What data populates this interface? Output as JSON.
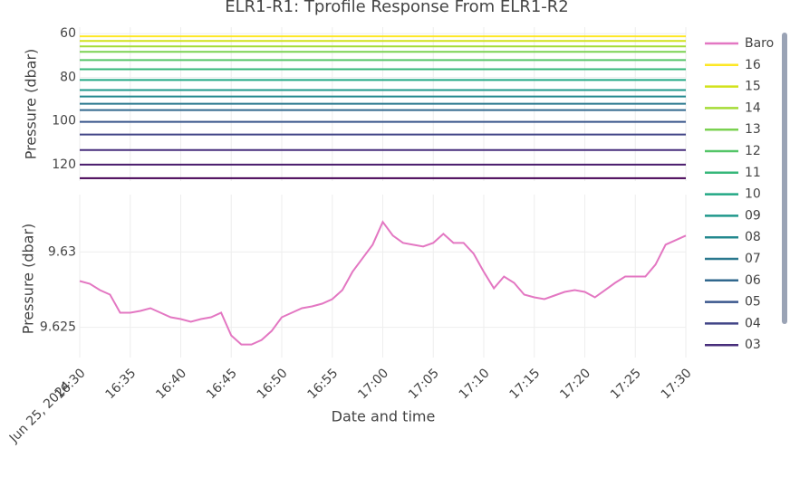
{
  "chart_data": [
    {
      "type": "line",
      "title": "ELR1-R1: Tprofile Response From ELR1-R2",
      "ylabel": "Pressure (dbar)",
      "x": [
        "2024-06-25T16:30",
        "2024-06-25T17:30"
      ],
      "xlim": [
        "2024-06-25T16:30",
        "2024-06-25T17:30"
      ],
      "ylim": [
        127.5,
        57
      ],
      "yticks": [
        60,
        80,
        100,
        120
      ],
      "grid": true,
      "series": [
        {
          "name": "16",
          "color": "#fde725",
          "values": [
            61.2,
            61.2
          ]
        },
        {
          "name": "15",
          "color": "#d2e21b",
          "values": [
            63.3,
            63.3
          ]
        },
        {
          "name": "14",
          "color": "#a5db36",
          "values": [
            65.8,
            65.8
          ]
        },
        {
          "name": "13",
          "color": "#7ad151",
          "values": [
            68.3,
            68.3
          ]
        },
        {
          "name": "12",
          "color": "#54c568",
          "values": [
            72.1,
            72.1
          ]
        },
        {
          "name": "11",
          "color": "#35b779",
          "values": [
            76.3,
            76.3
          ]
        },
        {
          "name": "10",
          "color": "#22a884",
          "values": [
            81.2,
            81.2
          ]
        },
        {
          "name": "09",
          "color": "#1f988b",
          "values": [
            85.8,
            85.8
          ]
        },
        {
          "name": "08",
          "color": "#23888e",
          "values": [
            88.8,
            88.8
          ]
        },
        {
          "name": "07",
          "color": "#2a788e",
          "values": [
            92.1,
            92.1
          ]
        },
        {
          "name": "06",
          "color": "#31688e",
          "values": [
            95,
            95
          ]
        },
        {
          "name": "05",
          "color": "#39568c",
          "values": [
            100.4,
            100.4
          ]
        },
        {
          "name": "04",
          "color": "#414487",
          "values": [
            106.2,
            106.2
          ]
        },
        {
          "name": "03",
          "color": "#472d7b",
          "values": [
            113.3,
            113.3
          ]
        },
        {
          "name": null,
          "color": "#481a6c",
          "values": [
            120,
            120
          ]
        },
        {
          "name": null,
          "color": "#440154",
          "values": [
            126.2,
            126.2
          ]
        }
      ]
    },
    {
      "type": "line",
      "ylabel": "Pressure (dbar)",
      "xlabel": "Date and time",
      "x_date": "Jun 25, 2024",
      "x": [
        "2024-06-25T16:30",
        "2024-06-25T16:31",
        "2024-06-25T16:32",
        "2024-06-25T16:33",
        "2024-06-25T16:34",
        "2024-06-25T16:35",
        "2024-06-25T16:36",
        "2024-06-25T16:37",
        "2024-06-25T16:38",
        "2024-06-25T16:39",
        "2024-06-25T16:40",
        "2024-06-25T16:41",
        "2024-06-25T16:42",
        "2024-06-25T16:43",
        "2024-06-25T16:44",
        "2024-06-25T16:45",
        "2024-06-25T16:46",
        "2024-06-25T16:47",
        "2024-06-25T16:48",
        "2024-06-25T16:49",
        "2024-06-25T16:50",
        "2024-06-25T16:51",
        "2024-06-25T16:52",
        "2024-06-25T16:53",
        "2024-06-25T16:54",
        "2024-06-25T16:55",
        "2024-06-25T16:56",
        "2024-06-25T16:57",
        "2024-06-25T16:58",
        "2024-06-25T16:59",
        "2024-06-25T17:00",
        "2024-06-25T17:01",
        "2024-06-25T17:02",
        "2024-06-25T17:03",
        "2024-06-25T17:04",
        "2024-06-25T17:05",
        "2024-06-25T17:06",
        "2024-06-25T17:07",
        "2024-06-25T17:08",
        "2024-06-25T17:09",
        "2024-06-25T17:10",
        "2024-06-25T17:11",
        "2024-06-25T17:12",
        "2024-06-25T17:13",
        "2024-06-25T17:14",
        "2024-06-25T17:15",
        "2024-06-25T17:16",
        "2024-06-25T17:17",
        "2024-06-25T17:18",
        "2024-06-25T17:19",
        "2024-06-25T17:20",
        "2024-06-25T17:21",
        "2024-06-25T17:22",
        "2024-06-25T17:23",
        "2024-06-25T17:24",
        "2024-06-25T17:25",
        "2024-06-25T17:26",
        "2024-06-25T17:27",
        "2024-06-25T17:28",
        "2024-06-25T17:29",
        "2024-06-25T17:30"
      ],
      "xlim": [
        "2024-06-25T16:30",
        "2024-06-25T17:30"
      ],
      "xticks": [
        {
          "value": "2024-06-25T16:30",
          "label": "16:30"
        },
        {
          "value": "2024-06-25T16:35",
          "label": "16:35"
        },
        {
          "value": "2024-06-25T16:40",
          "label": "16:40"
        },
        {
          "value": "2024-06-25T16:45",
          "label": "16:45"
        },
        {
          "value": "2024-06-25T16:50",
          "label": "16:50"
        },
        {
          "value": "2024-06-25T16:55",
          "label": "16:55"
        },
        {
          "value": "2024-06-25T17:00",
          "label": "17:00"
        },
        {
          "value": "2024-06-25T17:05",
          "label": "17:05"
        },
        {
          "value": "2024-06-25T17:10",
          "label": "17:10"
        },
        {
          "value": "2024-06-25T17:15",
          "label": "17:15"
        },
        {
          "value": "2024-06-25T17:20",
          "label": "17:20"
        },
        {
          "value": "2024-06-25T17:25",
          "label": "17:25"
        },
        {
          "value": "2024-06-25T17:30",
          "label": "17:30"
        }
      ],
      "ylim": [
        9.623,
        9.6338
      ],
      "yticks": [
        9.625,
        9.63
      ],
      "grid": true,
      "series": [
        {
          "name": "Baro",
          "color": "#e377c2",
          "values": [
            9.62807,
            9.62789,
            9.62747,
            9.62717,
            9.62597,
            9.62597,
            9.62609,
            9.62627,
            9.62597,
            9.62567,
            9.62555,
            9.62537,
            9.62555,
            9.62567,
            9.62597,
            9.62446,
            9.62386,
            9.62386,
            9.62416,
            9.62476,
            9.62567,
            9.62597,
            9.62627,
            9.62639,
            9.62657,
            9.62687,
            9.62747,
            9.62868,
            9.62958,
            9.63048,
            9.63199,
            9.63108,
            9.6306,
            9.63048,
            9.63036,
            9.6306,
            9.6312,
            9.6306,
            9.6306,
            9.62988,
            9.62868,
            9.62759,
            9.62837,
            9.62795,
            9.62717,
            9.62699,
            9.62687,
            9.62711,
            9.62735,
            9.62747,
            9.62735,
            9.62699,
            9.62747,
            9.62795,
            9.62837,
            9.62837,
            9.62837,
            9.62916,
            9.63048,
            9.63078,
            9.63108
          ]
        }
      ]
    }
  ]
}
